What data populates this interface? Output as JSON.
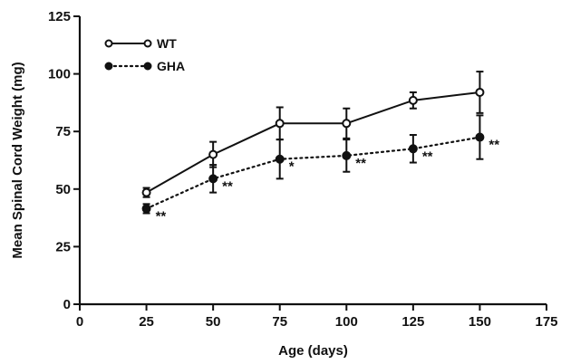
{
  "chart_data": {
    "type": "line",
    "xlabel": "Age (days)",
    "ylabel": "Mean Spinal Cord Weight (mg)",
    "xlim": [
      0,
      175
    ],
    "ylim": [
      0,
      125
    ],
    "xticks": [
      0,
      25,
      50,
      75,
      100,
      125,
      150,
      175
    ],
    "yticks": [
      0,
      25,
      50,
      75,
      100,
      125
    ],
    "x_tick_labels": [
      "0",
      "25",
      "50",
      "75",
      "100",
      "125",
      "150",
      "175"
    ],
    "y_tick_labels": [
      "0",
      "25",
      "50",
      "75",
      "100",
      "125"
    ],
    "grid": false,
    "legend_position": "top-left",
    "series": [
      {
        "name": "WT",
        "marker": "open-circle",
        "line_style": "solid",
        "x": [
          25,
          50,
          75,
          100,
          125,
          150
        ],
        "y": [
          48.5,
          65,
          78.5,
          78.5,
          88.5,
          92
        ],
        "error": [
          2,
          5.5,
          7,
          6.5,
          3.5,
          9
        ]
      },
      {
        "name": "GHA",
        "marker": "filled-circle",
        "line_style": "dotted",
        "x": [
          25,
          50,
          75,
          100,
          125,
          150
        ],
        "y": [
          41.5,
          54.5,
          63,
          64.5,
          67.5,
          72.5
        ],
        "error": [
          2,
          6,
          8.5,
          7,
          6,
          9.5
        ]
      }
    ],
    "annotations": [
      {
        "text": "**",
        "x": 25,
        "series": "GHA"
      },
      {
        "text": "**",
        "x": 50,
        "series": "GHA"
      },
      {
        "text": "*",
        "x": 75,
        "series": "GHA"
      },
      {
        "text": "**",
        "x": 100,
        "series": "GHA"
      },
      {
        "text": "**",
        "x": 125,
        "series": "GHA"
      },
      {
        "text": "**",
        "x": 150,
        "series": "GHA"
      }
    ]
  }
}
